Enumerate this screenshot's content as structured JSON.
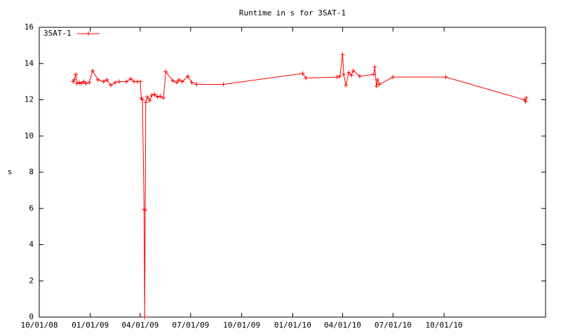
{
  "chart_data": {
    "type": "line",
    "title": "Runtime in s for 3SAT-1",
    "y_label": "s",
    "legend": "top-left",
    "x": [
      "12/01/08",
      "12/03/08",
      "12/06/08",
      "12/08/08",
      "12/12/08",
      "12/16/08",
      "12/20/08",
      "12/24/08",
      "12/30/08",
      "01/05/09",
      "01/15/09",
      "01/25/09",
      "01/31/09",
      "02/07/09",
      "02/15/09",
      "02/22/09",
      "03/07/09",
      "03/15/09",
      "03/21/09",
      "03/27/09",
      "04/01/09",
      "04/03/09",
      "04/05/09",
      "04/08/09",
      "04/09/09",
      "04/10/09",
      "04/11/09",
      "04/14/09",
      "04/18/09",
      "04/22/09",
      "04/27/09",
      "05/02/09",
      "05/07/09",
      "05/13/09",
      "05/17/09",
      "05/30/09",
      "06/06/09",
      "06/10/09",
      "06/16/09",
      "06/26/09",
      "07/03/09",
      "07/12/09",
      "08/29/09",
      "01/19/10",
      "01/25/10",
      "03/22/10",
      "03/27/10",
      "04/01/10",
      "04/03/10",
      "04/07/10",
      "04/12/10",
      "04/17/10",
      "04/20/10",
      "05/02/10",
      "05/27/10",
      "05/29/10",
      "06/01/10",
      "06/03/10",
      "06/06/10",
      "07/01/10",
      "10/04/10",
      "02/23/11",
      "02/25/11",
      "02/26/11"
    ],
    "series": [
      {
        "name": "3SAT-1",
        "color": "#ff0000",
        "values": [
          13.0,
          13.1,
          13.4,
          12.9,
          12.95,
          12.9,
          13.0,
          12.9,
          12.95,
          13.6,
          13.1,
          13.0,
          13.1,
          12.8,
          12.95,
          13.0,
          13.0,
          13.15,
          13.0,
          13.0,
          13.0,
          12.1,
          12.0,
          5.95,
          0,
          5.9,
          11.85,
          12.15,
          11.95,
          12.25,
          12.3,
          12.15,
          12.2,
          12.1,
          13.55,
          13.05,
          12.95,
          13.1,
          13.0,
          13.3,
          12.95,
          12.85,
          12.85,
          13.45,
          13.2,
          13.25,
          13.3,
          14.5,
          13.4,
          12.8,
          13.5,
          13.35,
          13.6,
          13.3,
          13.4,
          13.8,
          12.75,
          13.1,
          12.85,
          13.25,
          13.25,
          12.0,
          11.9,
          12.1
        ]
      }
    ],
    "xlim": [
      "10/01/08",
      "04/02/11"
    ],
    "xticks": [
      "10/01/08",
      "01/01/09",
      "04/01/09",
      "07/01/09",
      "10/01/09",
      "01/01/10",
      "04/01/10",
      "07/01/10",
      "10/01/10"
    ],
    "ylim": [
      0,
      16
    ],
    "yticks": [
      0,
      2,
      4,
      6,
      8,
      10,
      12,
      14,
      16
    ]
  }
}
